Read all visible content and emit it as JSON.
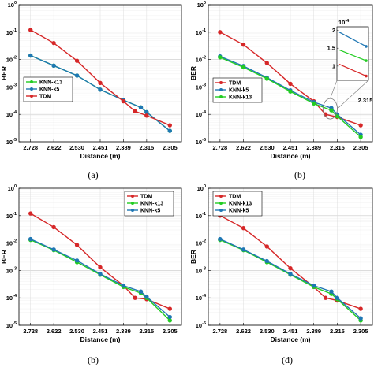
{
  "chart_data": [
    {
      "type": "line",
      "caption": "(a)",
      "xlabel": "Distance (m)",
      "ylabel": "BER",
      "categories": [
        "2.728",
        "2.622",
        "2.530",
        "2.451",
        "2.389",
        "2.315",
        "2.305"
      ],
      "y_scale": "log",
      "ylim": [
        1e-05,
        1
      ],
      "grid": true,
      "legend_position": "middle-left",
      "series": [
        {
          "name": "KNN-k13",
          "color": "#22cc22",
          "marker": "circle",
          "x": [
            0,
            1,
            2,
            3,
            4,
            4.75,
            5,
            6
          ],
          "values": [
            0.014,
            0.006,
            0.0026,
            0.0008,
            0.00033,
            0.00018,
            0.00012,
            2.5e-05
          ]
        },
        {
          "name": "KNN-k5",
          "color": "#1f77b4",
          "marker": "circle",
          "x": [
            0,
            1,
            2,
            3,
            4,
            4.75,
            5,
            6
          ],
          "values": [
            0.014,
            0.006,
            0.0026,
            0.0008,
            0.00033,
            0.00018,
            0.00012,
            2.5e-05
          ]
        },
        {
          "name": "TDM",
          "color": "#d62728",
          "marker": "circle",
          "x": [
            0,
            1,
            2,
            3,
            4,
            4.5,
            5,
            6
          ],
          "values": [
            0.12,
            0.04,
            0.009,
            0.0014,
            0.0003,
            0.00013,
            9e-05,
            4e-05
          ]
        }
      ]
    },
    {
      "type": "line",
      "caption": "(b)",
      "xlabel": "Distance (m)",
      "ylabel": "BER",
      "categories": [
        "2.728",
        "2.622",
        "2.530",
        "2.451",
        "2.389",
        "2.315",
        "2.305"
      ],
      "y_scale": "log",
      "ylim": [
        1e-05,
        1
      ],
      "grid": true,
      "legend_position": "middle-left",
      "series": [
        {
          "name": "TDM",
          "color": "#d62728",
          "marker": "circle",
          "x": [
            0,
            1,
            2,
            3,
            4,
            4.5,
            5,
            6
          ],
          "values": [
            0.1,
            0.035,
            0.0075,
            0.0013,
            0.0003,
            0.0001,
            8e-05,
            4e-05
          ]
        },
        {
          "name": "KNN-k5",
          "color": "#1f77b4",
          "marker": "circle",
          "x": [
            0,
            1,
            2,
            3,
            4,
            4.75,
            5,
            6
          ],
          "values": [
            0.013,
            0.0058,
            0.0022,
            0.00075,
            0.00028,
            0.00017,
            0.0001,
            1.8e-05
          ]
        },
        {
          "name": "KNN-k13",
          "color": "#22cc22",
          "marker": "circle",
          "x": [
            0,
            1,
            2,
            3,
            4,
            4.75,
            5,
            6
          ],
          "values": [
            0.012,
            0.0052,
            0.002,
            0.00068,
            0.00025,
            0.00014,
            8.5e-05,
            1.5e-05
          ]
        }
      ],
      "inset": {
        "xtick": "2.315",
        "yticks": [
          "1",
          "1.5",
          "2"
        ],
        "exponent": "10",
        "exponent_power": "-4",
        "series": [
          {
            "name": "KNN-k5",
            "color": "#1f77b4",
            "values": [
              1.95,
              1.55
            ]
          },
          {
            "name": "KNN-k13",
            "color": "#22cc22",
            "values": [
              1.45,
              1.15
            ]
          },
          {
            "name": "TDM",
            "color": "#d62728",
            "values": [
              1.05,
              0.72
            ]
          }
        ]
      }
    },
    {
      "type": "line",
      "caption": "(b)",
      "xlabel": "Distance (m)",
      "ylabel": "BER",
      "categories": [
        "2.728",
        "2.622",
        "2.530",
        "2.451",
        "2.389",
        "2.315",
        "2.305"
      ],
      "y_scale": "log",
      "ylim": [
        1e-05,
        1
      ],
      "grid": true,
      "legend_position": "top-right",
      "series": [
        {
          "name": "TDM",
          "color": "#d62728",
          "marker": "circle",
          "x": [
            0,
            1,
            2,
            3,
            4,
            4.5,
            5,
            6
          ],
          "values": [
            0.12,
            0.038,
            0.0085,
            0.0013,
            0.00028,
            0.0001,
            9e-05,
            4e-05
          ]
        },
        {
          "name": "KNN-k13",
          "color": "#22cc22",
          "marker": "circle",
          "x": [
            0,
            1,
            2,
            3,
            4,
            4.75,
            5,
            6
          ],
          "values": [
            0.013,
            0.0055,
            0.002,
            0.0007,
            0.00025,
            0.00015,
            0.0001,
            1.5e-05
          ]
        },
        {
          "name": "KNN-k5",
          "color": "#1f77b4",
          "marker": "circle",
          "x": [
            0,
            1,
            2,
            3,
            4,
            4.75,
            5,
            6
          ],
          "values": [
            0.014,
            0.0058,
            0.0023,
            0.00075,
            0.00028,
            0.00017,
            0.00011,
            2e-05
          ]
        }
      ]
    },
    {
      "type": "line",
      "caption": "(d)",
      "xlabel": "Distance (m)",
      "ylabel": "BER",
      "categories": [
        "2.728",
        "2.622",
        "2.530",
        "2.451",
        "2.389",
        "2.315",
        "2.305"
      ],
      "y_scale": "log",
      "ylim": [
        1e-05,
        1
      ],
      "grid": true,
      "legend_position": "top-left",
      "series": [
        {
          "name": "TDM",
          "color": "#d62728",
          "marker": "circle",
          "x": [
            0,
            1,
            2,
            3,
            4,
            4.5,
            5,
            6
          ],
          "values": [
            0.1,
            0.035,
            0.0075,
            0.0012,
            0.00025,
            0.0001,
            8e-05,
            4e-05
          ]
        },
        {
          "name": "KNN-k13",
          "color": "#22cc22",
          "marker": "circle",
          "x": [
            0,
            1,
            2,
            3,
            4,
            4.75,
            5,
            6
          ],
          "values": [
            0.013,
            0.0055,
            0.002,
            0.0007,
            0.00025,
            0.00014,
            9e-05,
            1.5e-05
          ]
        },
        {
          "name": "KNN-k5",
          "color": "#1f77b4",
          "marker": "circle",
          "x": [
            0,
            1,
            2,
            3,
            4,
            4.75,
            5,
            6
          ],
          "values": [
            0.014,
            0.0058,
            0.0022,
            0.00075,
            0.00028,
            0.00017,
            0.0001,
            1.8e-05
          ]
        }
      ]
    }
  ]
}
